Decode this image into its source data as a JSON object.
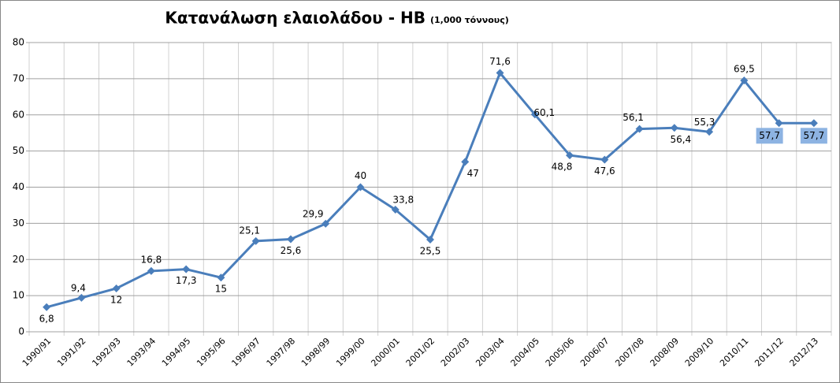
{
  "chart_data": {
    "type": "line",
    "title": "Κατανάλωση ελαιολάδου - ΗΒ",
    "subtitle": "(1,000 τόννους)",
    "categories": [
      "1990/91",
      "1991/92",
      "1992/93",
      "1993/94",
      "1994/95",
      "1995/96",
      "1996/97",
      "1997/98",
      "1998/99",
      "1999/00",
      "2000/01",
      "2001/02",
      "2002/03",
      "2003/04",
      "2004/05",
      "2005/06",
      "2006/07",
      "2007/08",
      "2008/09",
      "2009/10",
      "2010/11",
      "2011/12",
      "2012/13"
    ],
    "series": [
      {
        "name": "ΗΒ",
        "color": "#4a7ebb",
        "values": [
          6.8,
          9.4,
          12,
          16.8,
          17.3,
          15,
          25.1,
          25.6,
          29.9,
          40,
          33.8,
          25.5,
          47,
          71.6,
          60.1,
          48.8,
          47.6,
          56.1,
          56.4,
          55.3,
          69.5,
          57.7,
          57.7
        ],
        "value_labels": [
          "6,8",
          "9,4",
          "12",
          "16,8",
          "17,3",
          "15",
          "25,1",
          "25,6",
          "29,9",
          "40",
          "33,8",
          "25,5",
          "47",
          "71,6",
          "60,1",
          "48,8",
          "47,6",
          "56,1",
          "56,4",
          "55,3",
          "69,5",
          "57,7",
          "57,7"
        ]
      }
    ],
    "ylim": [
      0,
      80
    ],
    "yticks": [
      0,
      10,
      20,
      30,
      40,
      50,
      60,
      70,
      80
    ],
    "grid": true
  }
}
